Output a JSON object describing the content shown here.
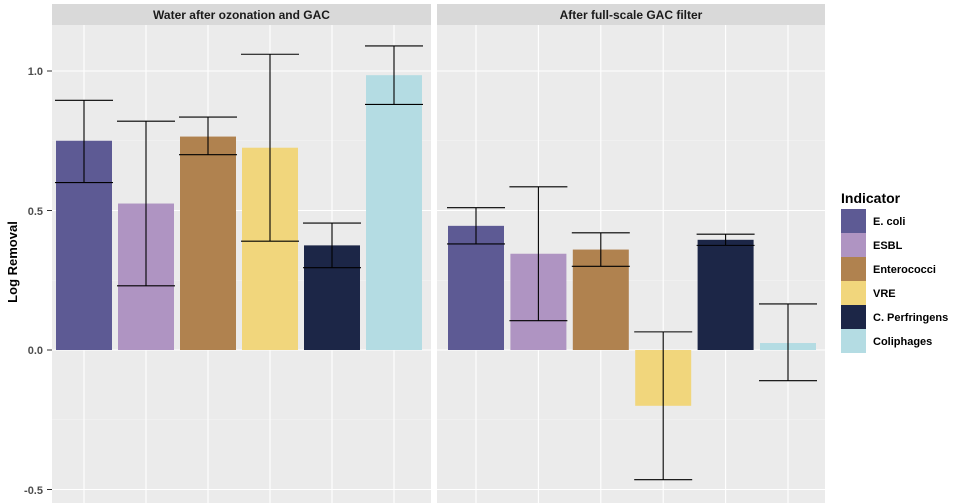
{
  "chart_data": {
    "type": "bar",
    "ylabel": "Log Removal",
    "xlabel": "",
    "ylim": [
      -0.5,
      1.2
    ],
    "yticks": [
      -0.5,
      0.0,
      0.5,
      1.0
    ],
    "ytick_labels": [
      "-0.5",
      "0.0",
      "0.5",
      "1.0"
    ],
    "legend": {
      "title": "Indicator",
      "placement": "right",
      "entries": [
        "E. coli",
        "ESBL",
        "Enterococci",
        "VRE",
        "C. Perfringens",
        "Coliphages"
      ],
      "colors": [
        "#5d5a94",
        "#af94c2",
        "#b0824f",
        "#f1d67c",
        "#1c2647",
        "#b4dce3"
      ]
    },
    "facets": [
      {
        "title": "Water after ozonation and GAC",
        "values": [
          0.75,
          0.525,
          0.765,
          0.725,
          0.375,
          0.985
        ],
        "err_low": [
          0.6,
          0.23,
          0.7,
          0.39,
          0.295,
          0.88
        ],
        "err_high": [
          0.895,
          0.82,
          0.835,
          1.06,
          0.455,
          1.09
        ]
      },
      {
        "title": "After full-scale GAC filter",
        "values": [
          0.445,
          0.345,
          0.36,
          -0.2,
          0.395,
          0.025
        ],
        "err_low": [
          0.38,
          0.105,
          0.3,
          -0.465,
          0.375,
          -0.11
        ],
        "err_high": [
          0.51,
          0.585,
          0.42,
          0.065,
          0.415,
          0.165
        ]
      }
    ]
  }
}
